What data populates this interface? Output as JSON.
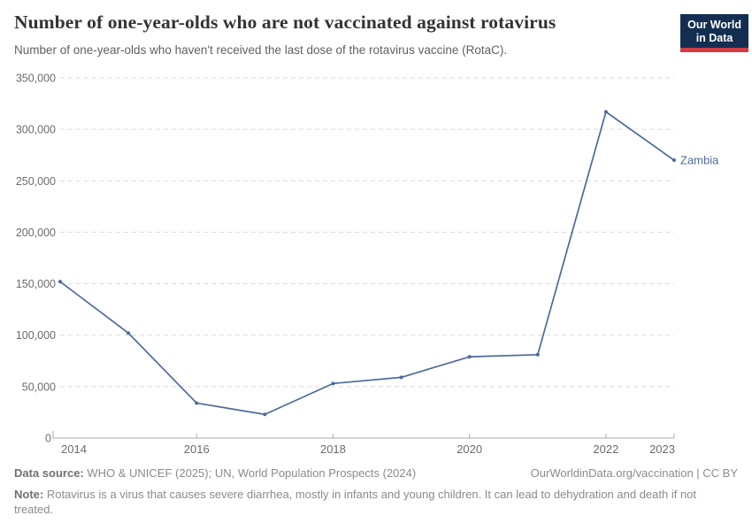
{
  "header": {
    "title": "Number of one-year-olds who are not vaccinated against rotavirus",
    "subtitle": "Number of one-year-olds who haven't received the last dose of the rotavirus vaccine (RotaC).",
    "logo": {
      "line1": "Our World",
      "line2": "in Data"
    }
  },
  "chart_data": {
    "type": "line",
    "title": "Number of one-year-olds who are not vaccinated against rotavirus",
    "entity_label": "Zambia",
    "x": [
      2014,
      2015,
      2016,
      2017,
      2018,
      2019,
      2020,
      2021,
      2022,
      2023
    ],
    "series": [
      {
        "name": "Zambia",
        "values": [
          152000,
          102000,
          34000,
          23000,
          53000,
          59000,
          79000,
          81000,
          317000,
          270000
        ]
      }
    ],
    "xlabel": "",
    "ylabel": "",
    "xlim": [
      2014,
      2023
    ],
    "ylim": [
      0,
      350000
    ],
    "xticks": [
      2014,
      2016,
      2018,
      2020,
      2022,
      2023
    ],
    "yticks": [
      0,
      50000,
      100000,
      150000,
      200000,
      250000,
      300000,
      350000
    ],
    "ytick_labels": [
      "0",
      "50,000",
      "100,000",
      "150,000",
      "200,000",
      "250,000",
      "300,000",
      "350,000"
    ],
    "grid": "horizontal-dashed",
    "legend_position": "end-of-line-label",
    "line_color": "#4c6a9c",
    "label_color": "#4c6a9c"
  },
  "footer": {
    "data_source_label": "Data source:",
    "data_source": " WHO & UNICEF (2025); UN, World Population Prospects (2024)",
    "link": "OurWorldinData.org/vaccination | CC BY",
    "note_label": "Note:",
    "note": " Rotavirus is a virus that causes severe diarrhea, mostly in infants and young children. It can lead to dehydration and death if not treated."
  },
  "colors": {
    "accent_line": "#4c6a9c",
    "title_text": "#333333",
    "subtitle_text": "#606060",
    "axis_text": "#6b6b6b",
    "gridline": "#dadada",
    "axis_line": "#a8a8a8",
    "footer_text": "#8b8b8b",
    "logo_bg": "#142e52",
    "logo_red": "#d13d43"
  }
}
